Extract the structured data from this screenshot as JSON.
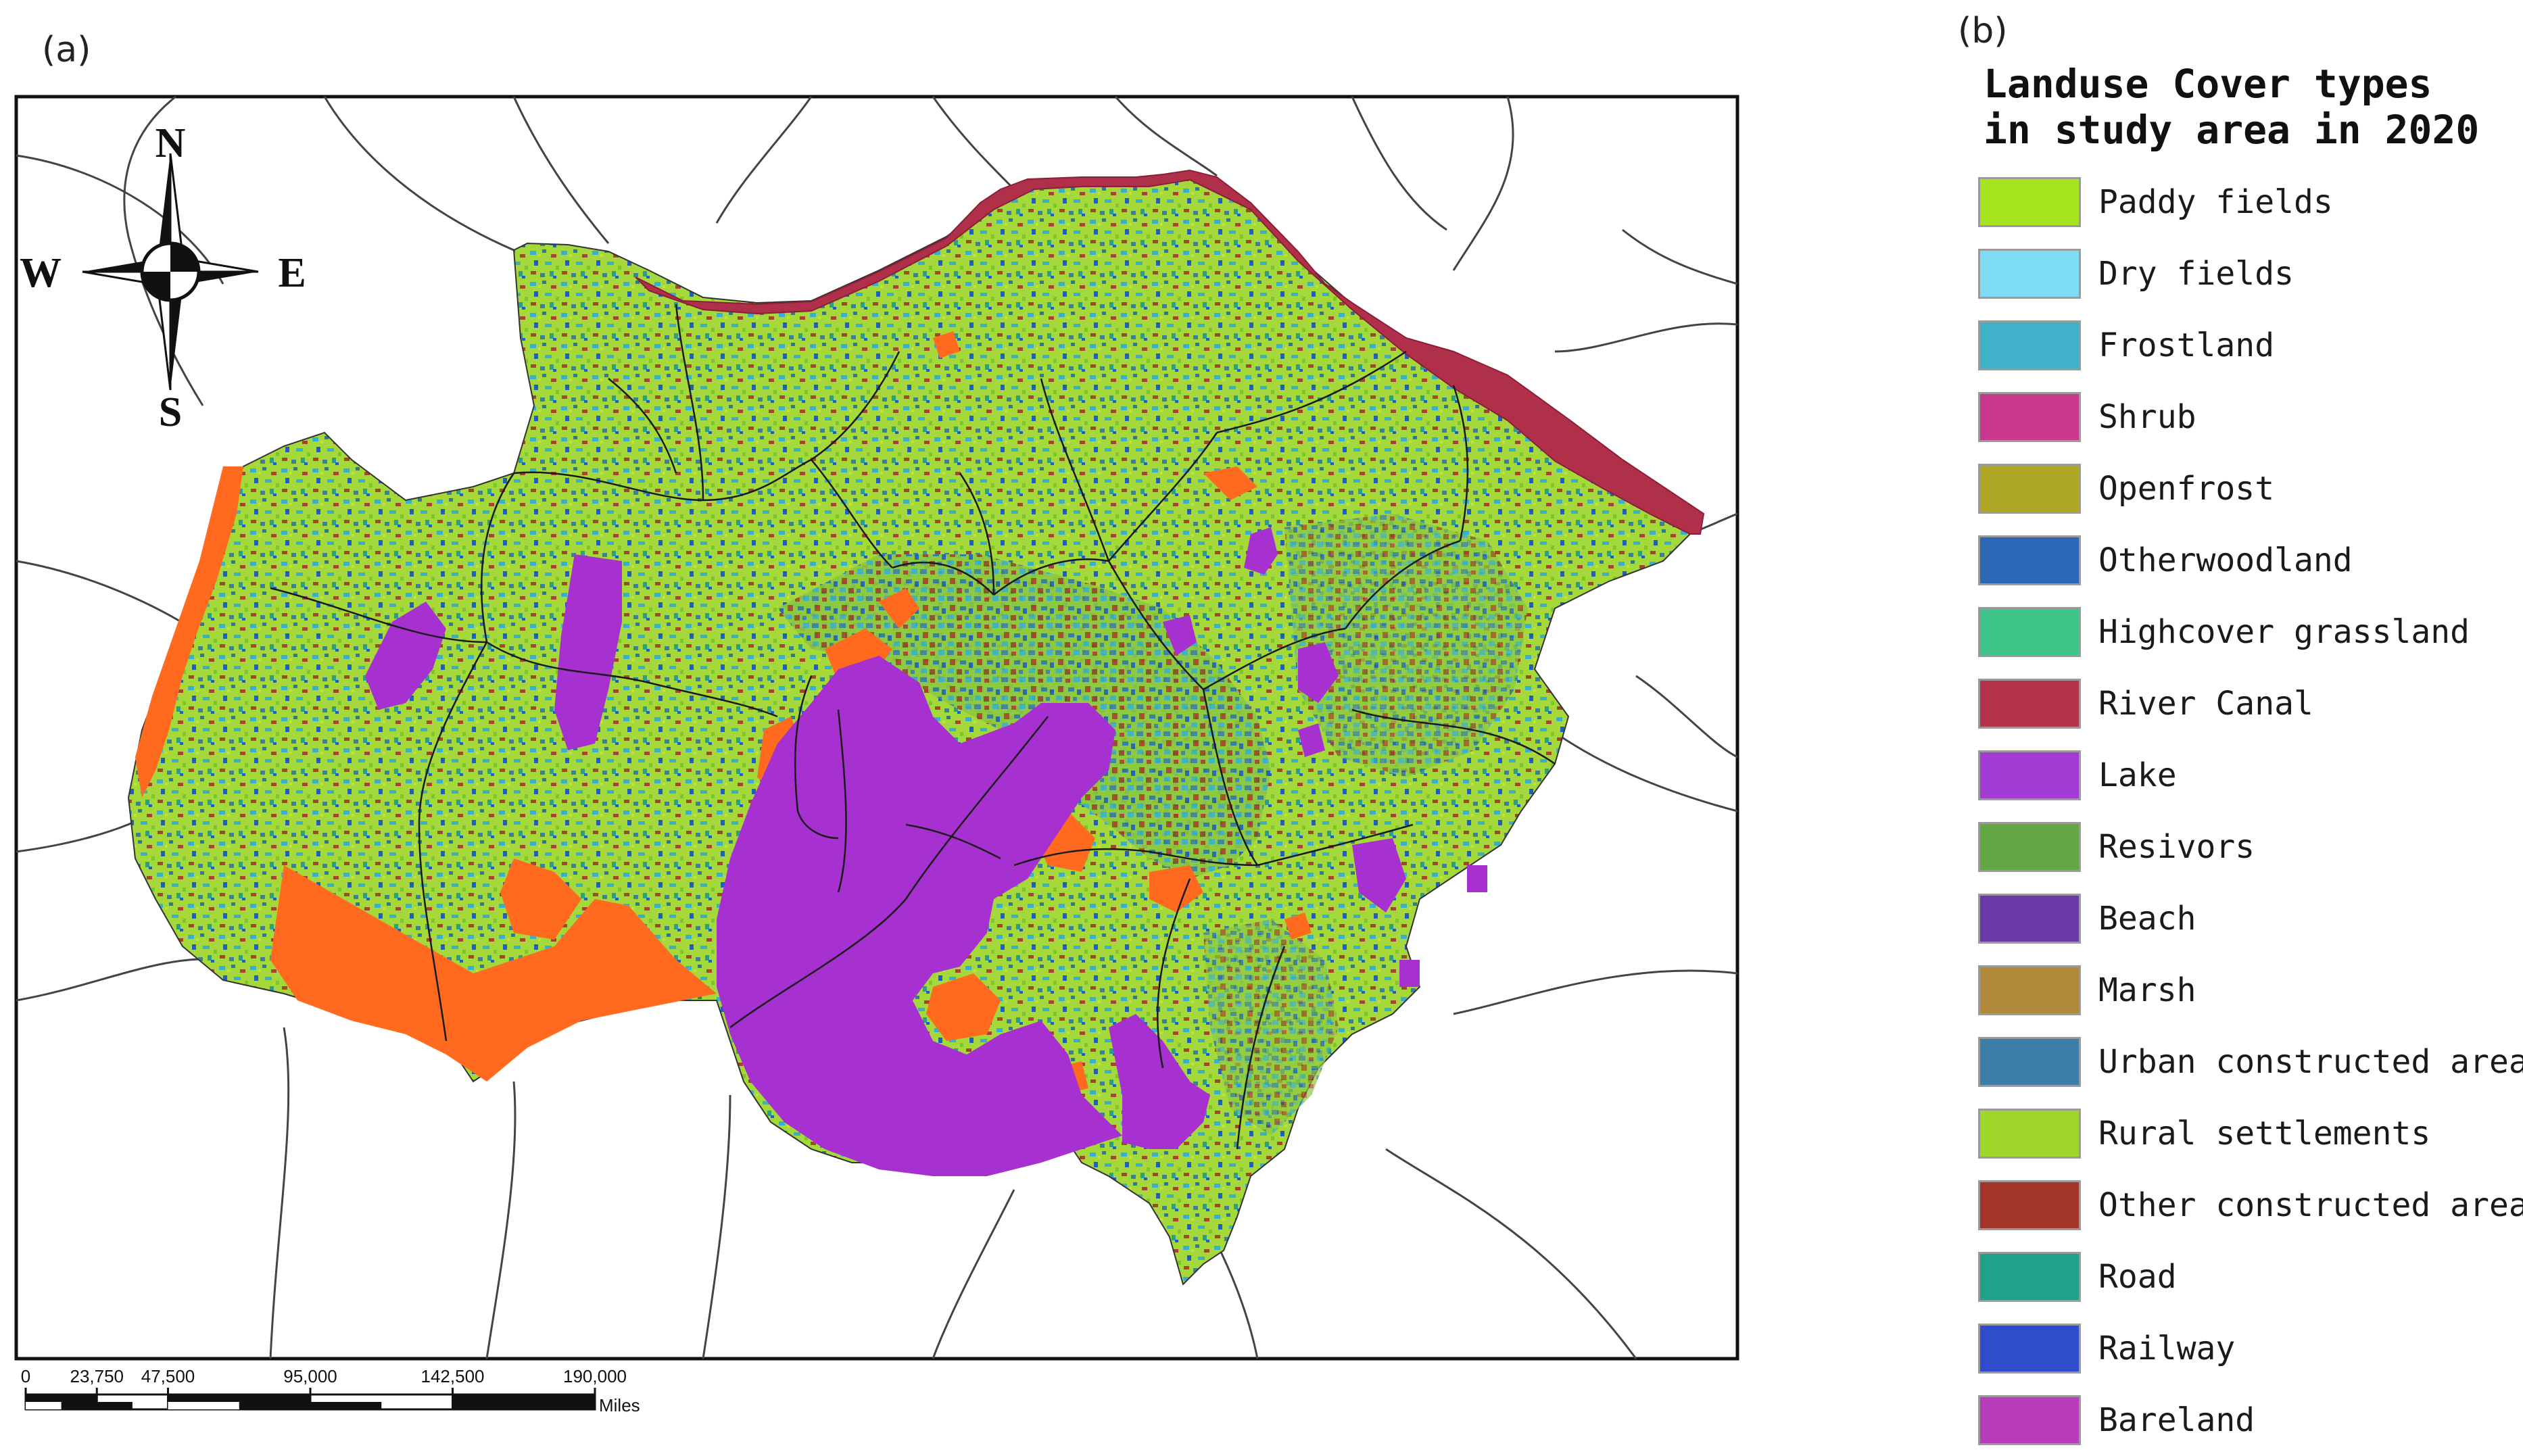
{
  "panels": {
    "a_label": "(a)",
    "b_label": "(b)"
  },
  "compass": {
    "north": "N",
    "south": "S",
    "east": "E",
    "west": "W"
  },
  "scalebar": {
    "ticks": [
      "0",
      "23,750",
      "47,500",
      "95,000",
      "142,500",
      "190,000"
    ],
    "tick_values": [
      0,
      23750,
      47500,
      95000,
      142500,
      190000
    ],
    "unit": "Miles"
  },
  "colors": {
    "paddy": "#9ee31a",
    "rural": "#a8d83a",
    "frostland": "#3aafc8",
    "river": "#b0304a",
    "lake": "#a630d0",
    "orange": "#ff6a1e",
    "urban": "#3a80a0",
    "other_constructed": "#a3452a",
    "otherwoodland": "#2060b8"
  },
  "legend": {
    "title_line1": "Landuse Cover types",
    "title_line2": "in study area in 2020",
    "items": [
      {
        "label": "Paddy fields",
        "color": "#a5e41e"
      },
      {
        "label": "Dry fields",
        "color": "#7fdcf5"
      },
      {
        "label": "Frostland",
        "color": "#3fb1c9"
      },
      {
        "label": "Shrub",
        "color": "#c8388c"
      },
      {
        "label": "Openfrost",
        "color": "#aea826"
      },
      {
        "label": "Otherwoodland",
        "color": "#2d68b6"
      },
      {
        "label": "Highcover grassland",
        "color": "#3fc48a"
      },
      {
        "label": "River Canal",
        "color": "#b3344a"
      },
      {
        "label": "Lake",
        "color": "#a23ad4"
      },
      {
        "label": "Resivors",
        "color": "#63a844"
      },
      {
        "label": "Beach",
        "color": "#6a3aa8"
      },
      {
        "label": "Marsh",
        "color": "#b08a3a"
      },
      {
        "label": "Urban constructed area",
        "color": "#3d7ea8"
      },
      {
        "label": "Rural settlements",
        "color": "#9fd62a"
      },
      {
        "label": "Other constructed area",
        "color": "#a4352a"
      },
      {
        "label": "Road",
        "color": "#21a08a"
      },
      {
        "label": "Railway",
        "color": "#2e4ccc"
      },
      {
        "label": "Bareland",
        "color": "#b93cbc"
      }
    ]
  }
}
